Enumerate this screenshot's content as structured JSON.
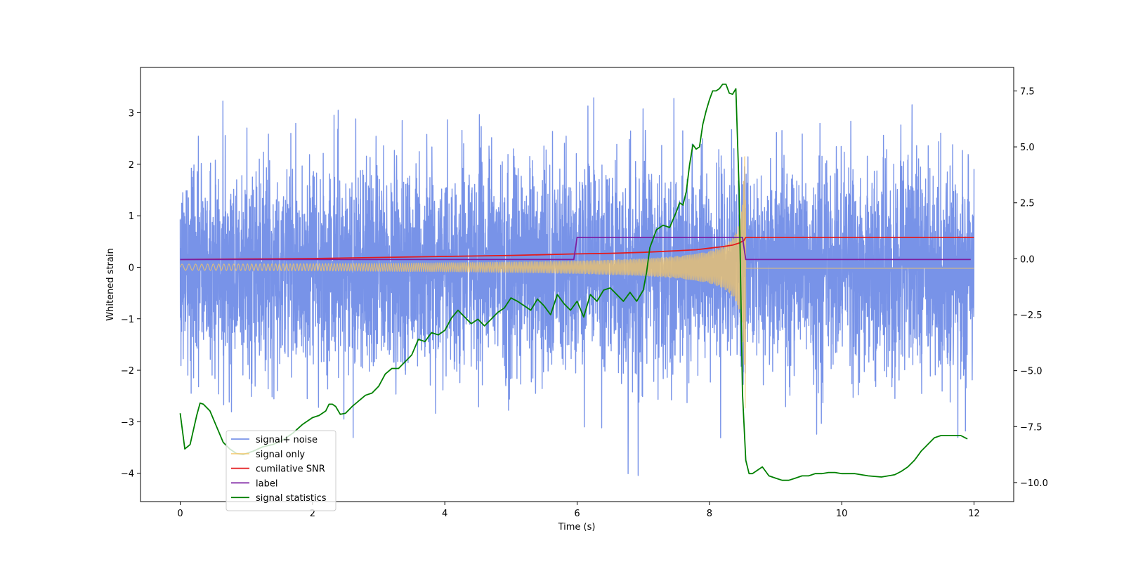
{
  "chart_data": {
    "type": "line",
    "xlabel": "Time (s)",
    "ylabel": "Whitened strain",
    "ylabel_right": "",
    "xlim": [
      -0.6,
      12.6
    ],
    "ylim_left": [
      -4.55,
      3.88
    ],
    "ylim_right": [
      -10.85,
      8.55
    ],
    "x_ticks": [
      0,
      2,
      4,
      6,
      8,
      10,
      12
    ],
    "y_ticks_left": [
      -4,
      -3,
      -2,
      -1,
      0,
      1,
      2,
      3
    ],
    "y_ticks_right": [
      -10.0,
      -7.5,
      -5.0,
      -2.5,
      0.0,
      2.5,
      5.0,
      7.5
    ],
    "x_tick_labels": [
      "0",
      "2",
      "4",
      "6",
      "8",
      "10",
      "12"
    ],
    "y_tick_labels_left": [
      "−4",
      "−3",
      "−2",
      "−1",
      "0",
      "1",
      "2",
      "3"
    ],
    "y_tick_labels_right": [
      "−10.0",
      "−7.5",
      "−5.0",
      "−2.5",
      "0.0",
      "2.5",
      "5.0",
      "7.5"
    ],
    "grid": false,
    "legend_position": "lower-left",
    "series": [
      {
        "name": "signal+ noise",
        "axis": "left",
        "color": "#7893e8",
        "kind": "noise",
        "x_range": [
          0,
          12
        ],
        "sigma": 1.0,
        "y_range_observed": [
          -4.15,
          3.5
        ]
      },
      {
        "name": "signal only",
        "axis": "left",
        "color": "#f4c565",
        "kind": "chirp",
        "x_range": [
          0,
          12
        ],
        "merger_time": 8.55,
        "peak_amplitude": 2.8,
        "post_merger_value": -0.02
      },
      {
        "name": "cumilative SNR",
        "axis": "left",
        "color": "#e41a1c",
        "kind": "line",
        "x": [
          0,
          1,
          2,
          3,
          4,
          5,
          6,
          6.5,
          7,
          7.5,
          7.8,
          8.0,
          8.2,
          8.35,
          8.45,
          8.52,
          8.55,
          12
        ],
        "y": [
          0.15,
          0.16,
          0.17,
          0.19,
          0.21,
          0.23,
          0.26,
          0.27,
          0.29,
          0.32,
          0.34,
          0.37,
          0.4,
          0.43,
          0.47,
          0.52,
          0.58,
          0.58
        ]
      },
      {
        "name": "label",
        "axis": "left",
        "color": "#7b1fa2",
        "kind": "line",
        "x": [
          0,
          5.95,
          6.0,
          8.5,
          8.55,
          11.95
        ],
        "y": [
          0.15,
          0.15,
          0.58,
          0.58,
          0.15,
          0.15
        ]
      },
      {
        "name": "signal statistics",
        "axis": "right",
        "color": "#008000",
        "kind": "line",
        "x": [
          0,
          0.07,
          0.15,
          0.25,
          0.3,
          0.35,
          0.45,
          0.55,
          0.65,
          0.75,
          0.85,
          0.95,
          1.1,
          1.25,
          1.4,
          1.55,
          1.7,
          1.85,
          2.0,
          2.1,
          2.2,
          2.25,
          2.3,
          2.35,
          2.42,
          2.5,
          2.6,
          2.7,
          2.8,
          2.9,
          3.0,
          3.1,
          3.2,
          3.3,
          3.4,
          3.5,
          3.6,
          3.7,
          3.8,
          3.9,
          4.0,
          4.1,
          4.2,
          4.3,
          4.4,
          4.5,
          4.6,
          4.7,
          4.8,
          4.9,
          5.0,
          5.1,
          5.2,
          5.3,
          5.4,
          5.5,
          5.6,
          5.7,
          5.8,
          5.9,
          6.0,
          6.1,
          6.2,
          6.3,
          6.4,
          6.5,
          6.6,
          6.7,
          6.8,
          6.9,
          7.0,
          7.05,
          7.1,
          7.15,
          7.2,
          7.3,
          7.4,
          7.5,
          7.55,
          7.6,
          7.65,
          7.7,
          7.75,
          7.8,
          7.85,
          7.9,
          7.95,
          8.0,
          8.05,
          8.1,
          8.15,
          8.2,
          8.25,
          8.3,
          8.35,
          8.4,
          8.45,
          8.5,
          8.55,
          8.6,
          8.65,
          8.7,
          8.8,
          8.9,
          9.0,
          9.1,
          9.2,
          9.3,
          9.4,
          9.5,
          9.6,
          9.7,
          9.8,
          9.9,
          10.0,
          10.2,
          10.4,
          10.6,
          10.8,
          10.9,
          11.0,
          11.1,
          11.2,
          11.3,
          11.4,
          11.5,
          11.6,
          11.7,
          11.8,
          11.9
        ],
        "y": [
          -6.9,
          -8.5,
          -8.3,
          -7.0,
          -6.45,
          -6.5,
          -6.8,
          -7.5,
          -8.2,
          -8.5,
          -8.7,
          -8.75,
          -8.6,
          -8.4,
          -8.3,
          -8.1,
          -7.8,
          -7.4,
          -7.1,
          -7.0,
          -6.8,
          -6.5,
          -6.5,
          -6.6,
          -6.95,
          -6.9,
          -6.6,
          -6.35,
          -6.1,
          -6.0,
          -5.7,
          -5.15,
          -4.9,
          -4.9,
          -4.6,
          -4.3,
          -3.6,
          -3.7,
          -3.3,
          -3.4,
          -3.2,
          -2.65,
          -2.3,
          -2.6,
          -2.9,
          -2.7,
          -3.0,
          -2.7,
          -2.4,
          -2.2,
          -1.75,
          -1.9,
          -2.1,
          -2.3,
          -1.8,
          -2.1,
          -2.5,
          -1.6,
          -2.0,
          -2.3,
          -1.9,
          -2.6,
          -1.6,
          -1.9,
          -1.4,
          -1.3,
          -1.6,
          -1.9,
          -1.5,
          -1.9,
          -1.4,
          -0.6,
          0.5,
          0.9,
          1.3,
          1.5,
          1.4,
          2.1,
          2.5,
          2.4,
          3.0,
          4.2,
          5.1,
          4.9,
          5.0,
          6.0,
          6.6,
          7.1,
          7.5,
          7.5,
          7.6,
          7.8,
          7.8,
          7.4,
          7.35,
          7.6,
          3.0,
          -6.0,
          -9.0,
          -9.6,
          -9.6,
          -9.5,
          -9.3,
          -9.7,
          -9.8,
          -9.9,
          -9.9,
          -9.8,
          -9.7,
          -9.7,
          -9.6,
          -9.6,
          -9.55,
          -9.55,
          -9.6,
          -9.6,
          -9.7,
          -9.75,
          -9.65,
          -9.5,
          -9.3,
          -9.0,
          -8.6,
          -8.3,
          -8.0,
          -7.9,
          -7.9,
          -7.9,
          -7.9,
          -8.05
        ]
      }
    ]
  }
}
